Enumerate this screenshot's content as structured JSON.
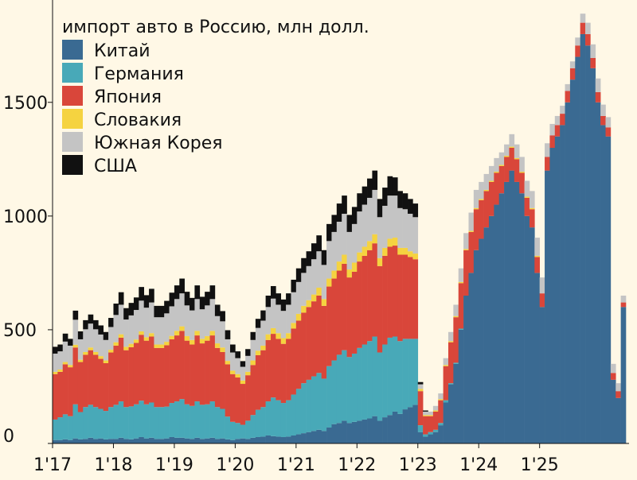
{
  "chart_data": {
    "type": "bar",
    "stacked": true,
    "title": "импорт авто в Россию, млн долл.",
    "xlabel": "",
    "ylabel": "",
    "ylim": [
      0,
      1950
    ],
    "yticks": [
      0,
      500,
      1000,
      1500
    ],
    "grid": false,
    "legend_position": "top-left",
    "x_tick_labels": [
      "1'17",
      "1'18",
      "1'19",
      "1'20",
      "1'21",
      "1'22",
      "1'23",
      "1'24",
      "1'25"
    ],
    "series": [
      {
        "name": "Китай",
        "color": "#3a6a92",
        "values": [
          15,
          15,
          18,
          15,
          22,
          18,
          20,
          25,
          20,
          22,
          18,
          20,
          20,
          25,
          20,
          18,
          22,
          28,
          22,
          25,
          20,
          20,
          22,
          28,
          25,
          25,
          22,
          20,
          25,
          20,
          22,
          25,
          20,
          22,
          18,
          15,
          20,
          22,
          20,
          25,
          28,
          30,
          35,
          32,
          30,
          28,
          30,
          35,
          40,
          45,
          50,
          55,
          60,
          55,
          70,
          85,
          90,
          100,
          90,
          95,
          100,
          105,
          110,
          120,
          100,
          115,
          125,
          140,
          130,
          150,
          160,
          170,
          50,
          30,
          40,
          50,
          80,
          180,
          260,
          350,
          500,
          650,
          750,
          850,
          900,
          950,
          1000,
          1050,
          1100,
          1150,
          1200,
          1150,
          1100,
          1000,
          950,
          750,
          600,
          1200,
          1300,
          1350,
          1400,
          1500,
          1600,
          1700,
          1800,
          1750,
          1650,
          1500,
          1400,
          1350,
          280,
          200,
          600
        ]
      },
      {
        "name": "Германия",
        "color": "#48a9b8",
        "values": [
          90,
          100,
          110,
          105,
          150,
          120,
          140,
          145,
          140,
          130,
          125,
          140,
          150,
          160,
          140,
          145,
          150,
          160,
          150,
          155,
          140,
          140,
          140,
          150,
          160,
          170,
          150,
          145,
          160,
          150,
          150,
          160,
          140,
          130,
          100,
          80,
          70,
          60,
          80,
          100,
          120,
          130,
          150,
          170,
          160,
          150,
          160,
          180,
          200,
          220,
          230,
          240,
          250,
          230,
          270,
          280,
          300,
          310,
          290,
          300,
          320,
          330,
          340,
          350,
          300,
          320,
          340,
          330,
          320,
          310,
          300,
          290,
          30,
          10,
          10,
          10,
          10,
          10,
          5,
          5,
          5,
          0,
          0,
          0,
          0,
          0,
          0,
          0,
          0,
          0,
          0,
          0,
          0,
          0,
          0,
          0,
          0,
          0,
          0,
          0,
          0,
          0,
          0,
          0,
          0,
          0,
          0,
          0,
          0,
          0,
          0,
          0,
          0
        ]
      },
      {
        "name": "Япония",
        "color": "#d9463a",
        "values": [
          200,
          200,
          220,
          215,
          250,
          220,
          230,
          240,
          230,
          220,
          210,
          240,
          260,
          280,
          250,
          260,
          270,
          290,
          280,
          290,
          260,
          260,
          270,
          280,
          290,
          300,
          280,
          270,
          290,
          270,
          280,
          290,
          260,
          250,
          230,
          210,
          200,
          180,
          200,
          220,
          240,
          250,
          270,
          280,
          270,
          260,
          270,
          290,
          300,
          310,
          320,
          330,
          340,
          320,
          350,
          360,
          370,
          380,
          350,
          360,
          380,
          390,
          400,
          410,
          380,
          390,
          400,
          400,
          380,
          370,
          360,
          350,
          150,
          80,
          70,
          80,
          100,
          150,
          180,
          200,
          200,
          200,
          180,
          180,
          170,
          160,
          150,
          140,
          120,
          110,
          100,
          100,
          90,
          80,
          80,
          70,
          60,
          60,
          55,
          50,
          50,
          50,
          50,
          50,
          50,
          50,
          45,
          45,
          40,
          40,
          30,
          30,
          20
        ]
      },
      {
        "name": "Словакия",
        "color": "#f5d340",
        "values": [
          10,
          10,
          10,
          10,
          12,
          10,
          12,
          12,
          12,
          12,
          12,
          12,
          15,
          15,
          15,
          15,
          15,
          15,
          15,
          15,
          15,
          15,
          15,
          15,
          20,
          20,
          20,
          20,
          20,
          20,
          20,
          20,
          20,
          20,
          15,
          15,
          15,
          15,
          15,
          20,
          20,
          20,
          25,
          25,
          25,
          25,
          25,
          25,
          30,
          30,
          30,
          30,
          35,
          30,
          35,
          35,
          40,
          40,
          35,
          40,
          40,
          40,
          40,
          40,
          35,
          35,
          35,
          35,
          30,
          30,
          25,
          25,
          10,
          5,
          5,
          5,
          5,
          5,
          5,
          5,
          5,
          5,
          5,
          5,
          5,
          5,
          5,
          5,
          5,
          5,
          5,
          5,
          5,
          5,
          5,
          5,
          0,
          0,
          0,
          0,
          0,
          0,
          0,
          0,
          0,
          0,
          0,
          0,
          0,
          0,
          0,
          0,
          0
        ]
      },
      {
        "name": "Южная Корея",
        "color": "#c4c4c4",
        "values": [
          80,
          80,
          90,
          85,
          110,
          90,
          100,
          105,
          100,
          95,
          90,
          100,
          120,
          130,
          120,
          125,
          130,
          135,
          130,
          135,
          120,
          120,
          125,
          130,
          140,
          145,
          135,
          130,
          140,
          130,
          135,
          140,
          120,
          115,
          95,
          80,
          70,
          60,
          70,
          90,
          100,
          110,
          120,
          130,
          125,
          120,
          125,
          135,
          140,
          145,
          150,
          155,
          160,
          150,
          165,
          170,
          175,
          180,
          165,
          170,
          180,
          185,
          190,
          195,
          180,
          185,
          190,
          185,
          175,
          170,
          165,
          160,
          20,
          15,
          15,
          20,
          25,
          30,
          40,
          50,
          60,
          70,
          80,
          80,
          75,
          70,
          65,
          60,
          55,
          50,
          55,
          60,
          65,
          70,
          75,
          80,
          70,
          60,
          50,
          40,
          35,
          30,
          30,
          35,
          40,
          50,
          60,
          60,
          50,
          45,
          40,
          35,
          30
        ]
      },
      {
        "name": "США",
        "color": "#111111",
        "values": [
          30,
          30,
          35,
          30,
          40,
          35,
          40,
          40,
          40,
          40,
          35,
          40,
          50,
          55,
          50,
          55,
          55,
          60,
          55,
          60,
          50,
          50,
          55,
          60,
          60,
          65,
          60,
          55,
          60,
          55,
          60,
          60,
          50,
          45,
          40,
          35,
          30,
          25,
          30,
          35,
          40,
          45,
          50,
          55,
          50,
          50,
          50,
          55,
          60,
          65,
          65,
          70,
          70,
          65,
          75,
          75,
          80,
          80,
          75,
          75,
          80,
          80,
          85,
          85,
          80,
          80,
          85,
          80,
          75,
          70,
          65,
          60,
          10,
          5,
          0,
          0,
          0,
          0,
          0,
          0,
          0,
          0,
          0,
          0,
          0,
          0,
          0,
          0,
          0,
          0,
          0,
          0,
          0,
          0,
          0,
          0,
          0,
          0,
          0,
          0,
          0,
          0,
          0,
          0,
          0,
          0,
          0,
          0,
          0,
          0,
          0,
          0,
          0
        ]
      }
    ]
  }
}
